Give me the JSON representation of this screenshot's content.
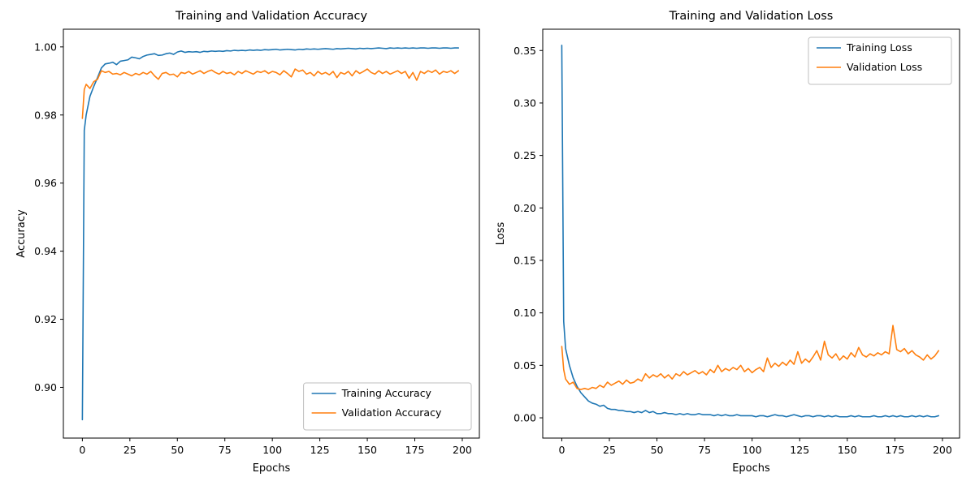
{
  "figure": {
    "background": "#ffffff"
  },
  "colors": {
    "training": "#1f77b4",
    "validation": "#ff7f0e",
    "axis": "#000000",
    "legend_border": "#bfbfbf"
  },
  "chart_data": [
    {
      "type": "line",
      "name": "accuracy-chart",
      "title": "Training and Validation Accuracy",
      "xlabel": "Epochs",
      "ylabel": "Accuracy",
      "xlim": [
        -10,
        209
      ],
      "ylim": [
        0.8851,
        1.0052
      ],
      "xticks": [
        0,
        25,
        50,
        75,
        100,
        125,
        150,
        175,
        200
      ],
      "xtick_labels": [
        "0",
        "25",
        "50",
        "75",
        "100",
        "125",
        "150",
        "175",
        "200"
      ],
      "yticks": [
        0.9,
        0.92,
        0.94,
        0.96,
        0.98,
        1.0
      ],
      "ytick_labels": [
        "0.90",
        "0.92",
        "0.94",
        "0.96",
        "0.98",
        "1.00"
      ],
      "grid": false,
      "legend_loc": "lower right",
      "x": [
        0,
        1,
        2,
        4,
        6,
        8,
        10,
        12,
        14,
        16,
        18,
        20,
        22,
        24,
        26,
        28,
        30,
        32,
        34,
        36,
        38,
        40,
        42,
        44,
        46,
        48,
        50,
        52,
        54,
        56,
        58,
        60,
        62,
        64,
        66,
        68,
        70,
        72,
        74,
        76,
        78,
        80,
        82,
        84,
        86,
        88,
        90,
        92,
        94,
        96,
        98,
        100,
        102,
        104,
        106,
        108,
        110,
        112,
        114,
        116,
        118,
        120,
        122,
        124,
        126,
        128,
        130,
        132,
        134,
        136,
        138,
        140,
        142,
        144,
        146,
        148,
        150,
        152,
        154,
        156,
        158,
        160,
        162,
        164,
        166,
        168,
        170,
        172,
        174,
        176,
        178,
        180,
        182,
        184,
        186,
        188,
        190,
        192,
        194,
        196,
        198
      ],
      "series": [
        {
          "name": "Training Accuracy",
          "color": "#1f77b4",
          "values": [
            0.8905,
            0.9755,
            0.98,
            0.9855,
            0.9884,
            0.991,
            0.9938,
            0.995,
            0.9952,
            0.9955,
            0.9948,
            0.9958,
            0.996,
            0.9962,
            0.997,
            0.9968,
            0.9965,
            0.9972,
            0.9976,
            0.9978,
            0.998,
            0.9975,
            0.9976,
            0.998,
            0.9982,
            0.9978,
            0.9985,
            0.9988,
            0.9984,
            0.9986,
            0.9985,
            0.9986,
            0.9984,
            0.9987,
            0.9986,
            0.9988,
            0.9987,
            0.9988,
            0.9987,
            0.9989,
            0.9988,
            0.999,
            0.9989,
            0.999,
            0.9989,
            0.9991,
            0.999,
            0.9991,
            0.999,
            0.9992,
            0.9991,
            0.9992,
            0.9993,
            0.9991,
            0.9992,
            0.9993,
            0.9992,
            0.9991,
            0.9993,
            0.9992,
            0.9994,
            0.9993,
            0.9994,
            0.9993,
            0.9994,
            0.9995,
            0.9994,
            0.9993,
            0.9995,
            0.9994,
            0.9995,
            0.9996,
            0.9995,
            0.9994,
            0.9996,
            0.9995,
            0.9996,
            0.9995,
            0.9996,
            0.9997,
            0.9996,
            0.9995,
            0.9997,
            0.9996,
            0.9997,
            0.9996,
            0.9997,
            0.9996,
            0.9997,
            0.9996,
            0.9997,
            0.9997,
            0.9996,
            0.9997,
            0.9997,
            0.9996,
            0.9997,
            0.9997,
            0.9996,
            0.9997,
            0.9997
          ]
        },
        {
          "name": "Validation Accuracy",
          "color": "#ff7f0e",
          "values": [
            0.979,
            0.9875,
            0.989,
            0.9878,
            0.9898,
            0.9905,
            0.993,
            0.9925,
            0.9928,
            0.992,
            0.9922,
            0.9918,
            0.9925,
            0.992,
            0.9915,
            0.9922,
            0.9918,
            0.9925,
            0.992,
            0.9928,
            0.9915,
            0.9905,
            0.9922,
            0.9925,
            0.9918,
            0.992,
            0.9912,
            0.9925,
            0.9922,
            0.9928,
            0.992,
            0.9925,
            0.993,
            0.9922,
            0.9928,
            0.9932,
            0.9925,
            0.992,
            0.9928,
            0.9922,
            0.9925,
            0.9918,
            0.9928,
            0.9922,
            0.993,
            0.9925,
            0.992,
            0.9928,
            0.9925,
            0.993,
            0.9922,
            0.9928,
            0.9925,
            0.9918,
            0.993,
            0.9922,
            0.9912,
            0.9935,
            0.9928,
            0.9932,
            0.992,
            0.9925,
            0.9915,
            0.9928,
            0.992,
            0.9925,
            0.9918,
            0.9928,
            0.991,
            0.9925,
            0.992,
            0.9928,
            0.9915,
            0.993,
            0.9922,
            0.9928,
            0.9935,
            0.9925,
            0.992,
            0.993,
            0.9922,
            0.9928,
            0.992,
            0.9925,
            0.993,
            0.9922,
            0.9928,
            0.9908,
            0.9925,
            0.9902,
            0.9928,
            0.9922,
            0.993,
            0.9925,
            0.9932,
            0.992,
            0.9928,
            0.9925,
            0.993,
            0.9922,
            0.993
          ]
        }
      ]
    },
    {
      "type": "line",
      "name": "loss-chart",
      "title": "Training and Validation Loss",
      "xlabel": "Epochs",
      "ylabel": "Loss",
      "xlim": [
        -10,
        209
      ],
      "ylim": [
        -0.0193,
        0.3703
      ],
      "xticks": [
        0,
        25,
        50,
        75,
        100,
        125,
        150,
        175,
        200
      ],
      "xtick_labels": [
        "0",
        "25",
        "50",
        "75",
        "100",
        "125",
        "150",
        "175",
        "200"
      ],
      "yticks": [
        0.0,
        0.05,
        0.1,
        0.15,
        0.2,
        0.25,
        0.3,
        0.35
      ],
      "ytick_labels": [
        "0.00",
        "0.05",
        "0.10",
        "0.15",
        "0.20",
        "0.25",
        "0.30",
        "0.35"
      ],
      "grid": false,
      "legend_loc": "upper right",
      "x": [
        0,
        1,
        2,
        4,
        6,
        8,
        10,
        12,
        14,
        16,
        18,
        20,
        22,
        24,
        26,
        28,
        30,
        32,
        34,
        36,
        38,
        40,
        42,
        44,
        46,
        48,
        50,
        52,
        54,
        56,
        58,
        60,
        62,
        64,
        66,
        68,
        70,
        72,
        74,
        76,
        78,
        80,
        82,
        84,
        86,
        88,
        90,
        92,
        94,
        96,
        98,
        100,
        102,
        104,
        106,
        108,
        110,
        112,
        114,
        116,
        118,
        120,
        122,
        124,
        126,
        128,
        130,
        132,
        134,
        136,
        138,
        140,
        142,
        144,
        146,
        148,
        150,
        152,
        154,
        156,
        158,
        160,
        162,
        164,
        166,
        168,
        170,
        172,
        174,
        176,
        178,
        180,
        182,
        184,
        186,
        188,
        190,
        192,
        194,
        196,
        198
      ],
      "series": [
        {
          "name": "Training Loss",
          "color": "#1f77b4",
          "values": [
            0.355,
            0.092,
            0.066,
            0.05,
            0.038,
            0.03,
            0.024,
            0.02,
            0.016,
            0.014,
            0.013,
            0.011,
            0.012,
            0.009,
            0.008,
            0.008,
            0.007,
            0.007,
            0.006,
            0.006,
            0.005,
            0.006,
            0.005,
            0.007,
            0.005,
            0.006,
            0.004,
            0.004,
            0.005,
            0.004,
            0.004,
            0.003,
            0.004,
            0.003,
            0.004,
            0.003,
            0.003,
            0.004,
            0.003,
            0.003,
            0.003,
            0.002,
            0.003,
            0.002,
            0.003,
            0.002,
            0.002,
            0.003,
            0.002,
            0.002,
            0.002,
            0.002,
            0.001,
            0.002,
            0.002,
            0.001,
            0.002,
            0.003,
            0.002,
            0.002,
            0.001,
            0.002,
            0.003,
            0.002,
            0.001,
            0.002,
            0.002,
            0.001,
            0.002,
            0.002,
            0.001,
            0.002,
            0.001,
            0.002,
            0.001,
            0.001,
            0.001,
            0.002,
            0.001,
            0.002,
            0.001,
            0.001,
            0.001,
            0.002,
            0.001,
            0.001,
            0.002,
            0.001,
            0.002,
            0.001,
            0.002,
            0.001,
            0.001,
            0.002,
            0.001,
            0.002,
            0.001,
            0.002,
            0.001,
            0.001,
            0.002
          ]
        },
        {
          "name": "Validation Loss",
          "color": "#ff7f0e",
          "values": [
            0.068,
            0.046,
            0.037,
            0.032,
            0.034,
            0.028,
            0.027,
            0.028,
            0.027,
            0.029,
            0.028,
            0.031,
            0.029,
            0.034,
            0.031,
            0.033,
            0.035,
            0.032,
            0.036,
            0.033,
            0.034,
            0.037,
            0.035,
            0.042,
            0.038,
            0.041,
            0.039,
            0.042,
            0.038,
            0.041,
            0.037,
            0.042,
            0.04,
            0.044,
            0.041,
            0.043,
            0.045,
            0.042,
            0.044,
            0.041,
            0.046,
            0.043,
            0.05,
            0.044,
            0.047,
            0.045,
            0.048,
            0.046,
            0.05,
            0.044,
            0.047,
            0.043,
            0.046,
            0.048,
            0.044,
            0.057,
            0.048,
            0.052,
            0.049,
            0.053,
            0.05,
            0.055,
            0.051,
            0.063,
            0.052,
            0.056,
            0.053,
            0.058,
            0.064,
            0.055,
            0.073,
            0.06,
            0.057,
            0.061,
            0.055,
            0.059,
            0.056,
            0.062,
            0.058,
            0.067,
            0.06,
            0.058,
            0.061,
            0.059,
            0.062,
            0.06,
            0.063,
            0.061,
            0.088,
            0.065,
            0.063,
            0.066,
            0.061,
            0.064,
            0.06,
            0.058,
            0.055,
            0.06,
            0.056,
            0.059,
            0.064
          ]
        }
      ]
    }
  ]
}
